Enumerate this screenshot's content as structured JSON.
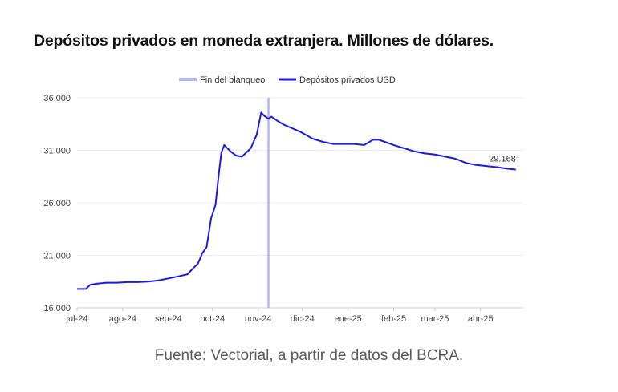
{
  "title": "Depósitos privados en moneda extranjera. Millones de dólares.",
  "source_note": "Fuente: Vectorial, a partir de datos del BCRA.",
  "colors": {
    "series": "#1a1ae6",
    "marker_line": "#b3b6f5",
    "grid": "#ececf0",
    "text": "#444444"
  },
  "chart_data": {
    "type": "line",
    "title": "Depósitos privados en moneda extranjera. Millones de dólares.",
    "xlabel": "",
    "ylabel": "",
    "legend_position": "top-center",
    "grid": true,
    "ylim": [
      16000,
      36000
    ],
    "yticks": [
      16000,
      21000,
      26000,
      31000,
      36000
    ],
    "ytick_labels": [
      "16.000",
      "21.000",
      "26.000",
      "31.000",
      "36.000"
    ],
    "xlim": [
      "2024-07-01",
      "2025-04-30"
    ],
    "xticks": [
      "2024-07-01",
      "2024-08-01",
      "2024-09-01",
      "2024-10-01",
      "2024-11-01",
      "2024-12-01",
      "2025-01-01",
      "2025-02-01",
      "2025-03-01",
      "2025-04-01"
    ],
    "xtick_labels": [
      "jul-24",
      "ago-24",
      "sep-24",
      "oct-24",
      "nov-24",
      "dic-24",
      "ene-25",
      "feb-25",
      "mar-25",
      "abr-25"
    ],
    "vertical_line": {
      "label": "Fin del blanqueo",
      "x": "2024-11-08"
    },
    "series": [
      {
        "name": "Depósitos privados USD",
        "last_label": "29.168",
        "points": [
          [
            "2024-07-01",
            17800
          ],
          [
            "2024-07-07",
            17800
          ],
          [
            "2024-07-10",
            18200
          ],
          [
            "2024-07-14",
            18300
          ],
          [
            "2024-07-21",
            18400
          ],
          [
            "2024-07-28",
            18400
          ],
          [
            "2024-08-04",
            18450
          ],
          [
            "2024-08-11",
            18450
          ],
          [
            "2024-08-18",
            18500
          ],
          [
            "2024-08-25",
            18600
          ],
          [
            "2024-09-01",
            18800
          ],
          [
            "2024-09-08",
            19000
          ],
          [
            "2024-09-14",
            19200
          ],
          [
            "2024-09-18",
            19800
          ],
          [
            "2024-09-21",
            20200
          ],
          [
            "2024-09-24",
            21200
          ],
          [
            "2024-09-27",
            21800
          ],
          [
            "2024-09-30",
            24500
          ],
          [
            "2024-10-03",
            25800
          ],
          [
            "2024-10-05",
            28500
          ],
          [
            "2024-10-07",
            30800
          ],
          [
            "2024-10-09",
            31500
          ],
          [
            "2024-10-11",
            31200
          ],
          [
            "2024-10-14",
            30800
          ],
          [
            "2024-10-17",
            30500
          ],
          [
            "2024-10-21",
            30400
          ],
          [
            "2024-10-24",
            30800
          ],
          [
            "2024-10-27",
            31200
          ],
          [
            "2024-10-31",
            32500
          ],
          [
            "2024-11-03",
            34600
          ],
          [
            "2024-11-05",
            34300
          ],
          [
            "2024-11-08",
            34000
          ],
          [
            "2024-11-10",
            34200
          ],
          [
            "2024-11-14",
            33800
          ],
          [
            "2024-11-19",
            33400
          ],
          [
            "2024-11-24",
            33100
          ],
          [
            "2024-11-29",
            32800
          ],
          [
            "2024-12-03",
            32500
          ],
          [
            "2024-12-08",
            32100
          ],
          [
            "2024-12-15",
            31800
          ],
          [
            "2024-12-22",
            31600
          ],
          [
            "2024-12-29",
            31600
          ],
          [
            "2025-01-05",
            31600
          ],
          [
            "2025-01-12",
            31500
          ],
          [
            "2025-01-18",
            32000
          ],
          [
            "2025-01-22",
            32000
          ],
          [
            "2025-01-26",
            31800
          ],
          [
            "2025-02-01",
            31500
          ],
          [
            "2025-02-08",
            31200
          ],
          [
            "2025-02-15",
            30900
          ],
          [
            "2025-02-22",
            30700
          ],
          [
            "2025-03-01",
            30600
          ],
          [
            "2025-03-08",
            30400
          ],
          [
            "2025-03-15",
            30200
          ],
          [
            "2025-03-22",
            29800
          ],
          [
            "2025-03-29",
            29600
          ],
          [
            "2025-04-05",
            29500
          ],
          [
            "2025-04-12",
            29400
          ],
          [
            "2025-04-19",
            29250
          ],
          [
            "2025-04-25",
            29168
          ]
        ]
      }
    ]
  }
}
